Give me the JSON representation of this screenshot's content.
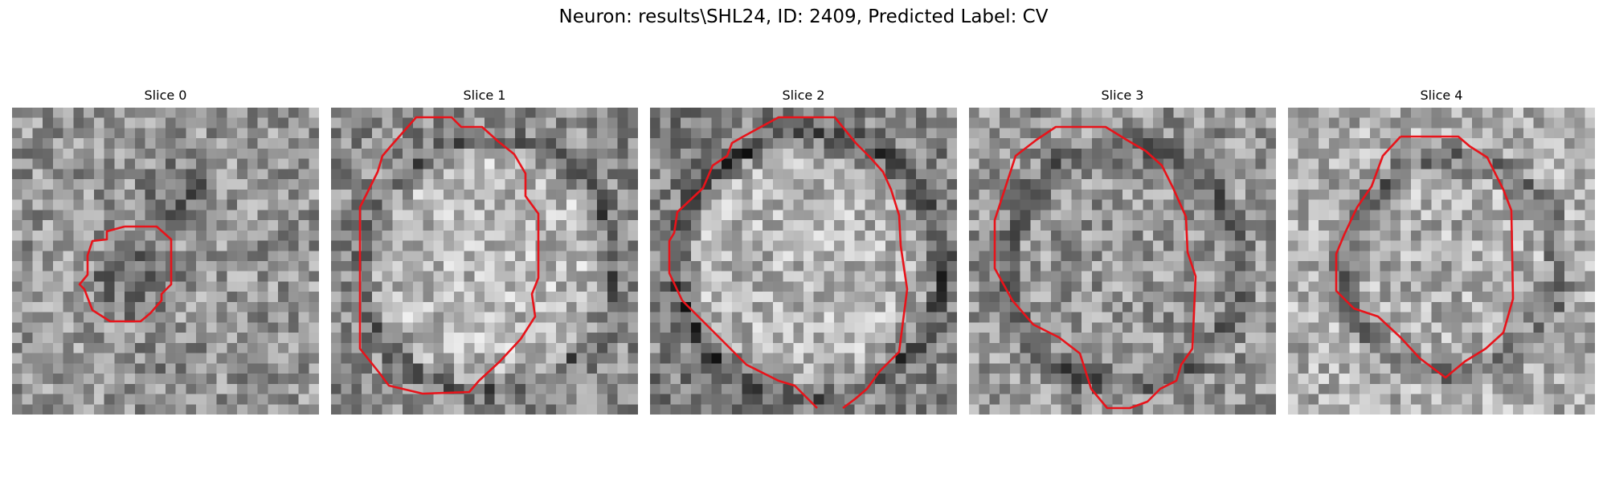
{
  "suptitle": "Neuron: results\\SHL24, ID: 2409, Predicted Label: CV",
  "contour_color": "#e8131a",
  "panels": [
    {
      "title": "Slice 0"
    },
    {
      "title": "Slice 1"
    },
    {
      "title": "Slice 2"
    },
    {
      "title": "Slice 3"
    },
    {
      "title": "Slice 4"
    }
  ]
}
